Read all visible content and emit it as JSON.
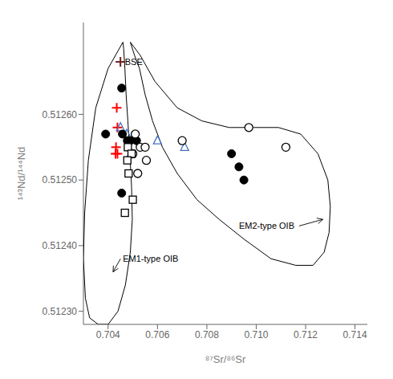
{
  "chart_data": {
    "type": "scatter",
    "xlabel": "⁸⁷Sr/⁸⁶Sr",
    "ylabel": "¹⁴³Nd/¹⁴⁴Nd",
    "xlim": [
      0.703,
      0.7145
    ],
    "ylim": [
      0.51228,
      0.51274
    ],
    "xticks": [
      0.704,
      0.706,
      0.708,
      {
        "value": 0.71,
        "label": "0.710"
      },
      0.712,
      0.714
    ],
    "yticks": [
      {
        "value": 0.5123,
        "label": "0.51230"
      },
      {
        "value": 0.5124,
        "label": "0.51240"
      },
      {
        "value": 0.5125,
        "label": "0.51250"
      },
      {
        "value": 0.5126,
        "label": "0.51260"
      }
    ],
    "grid": false,
    "series": [
      {
        "type": "line",
        "line_style": "solid",
        "color": "#000000",
        "values": [
          [
            0.7046,
            0.51271
          ],
          [
            0.704,
            0.51267
          ],
          [
            0.7035,
            0.51261
          ],
          [
            0.7032,
            0.51253
          ],
          [
            0.70305,
            0.51245
          ],
          [
            0.703,
            0.51238
          ],
          [
            0.70308,
            0.51232
          ],
          [
            0.70325,
            0.51229
          ],
          [
            0.7036,
            0.51228
          ],
          [
            0.704,
            0.51228
          ],
          [
            0.7044,
            0.5123
          ],
          [
            0.7047,
            0.51234
          ],
          [
            0.7049,
            0.51239
          ],
          [
            0.70498,
            0.51244
          ],
          [
            0.70495,
            0.51249
          ],
          [
            0.70488,
            0.51254
          ],
          [
            0.7048,
            0.51259
          ],
          [
            0.70473,
            0.51263
          ],
          [
            0.70468,
            0.51267
          ],
          [
            0.70463,
            0.5127
          ],
          [
            0.7046,
            0.51271
          ]
        ]
      },
      {
        "type": "line",
        "line_style": "solid",
        "color": "#000000",
        "values": [
          [
            0.7049,
            0.51271
          ],
          [
            0.7053,
            0.51269
          ],
          [
            0.7059,
            0.51265
          ],
          [
            0.7068,
            0.51261
          ],
          [
            0.7078,
            0.51259
          ],
          [
            0.7089,
            0.51258
          ],
          [
            0.7099,
            0.51258
          ],
          [
            0.7109,
            0.51258
          ],
          [
            0.7118,
            0.51257
          ],
          [
            0.7125,
            0.51254
          ],
          [
            0.7129,
            0.5125
          ],
          [
            0.713,
            0.51246
          ],
          [
            0.71295,
            0.51242
          ],
          [
            0.71275,
            0.51239
          ],
          [
            0.7123,
            0.51237
          ],
          [
            0.7116,
            0.51237
          ],
          [
            0.7106,
            0.51238
          ],
          [
            0.7095,
            0.51241
          ],
          [
            0.7085,
            0.51244
          ],
          [
            0.7076,
            0.51247
          ],
          [
            0.7068,
            0.51251
          ],
          [
            0.7062,
            0.51255
          ],
          [
            0.7058,
            0.51259
          ],
          [
            0.7055,
            0.51263
          ],
          [
            0.70527,
            0.51267
          ],
          [
            0.70507,
            0.51269
          ],
          [
            0.7049,
            0.51271
          ]
        ]
      },
      {
        "type": "scatter",
        "marker": "plus",
        "color": "#6B2020",
        "values": [
          [
            0.7045,
            0.51268
          ]
        ]
      },
      {
        "type": "scatter",
        "marker": "plus",
        "color": "red",
        "values": [
          [
            0.70435,
            0.51261
          ],
          [
            0.70438,
            0.51258
          ],
          [
            0.70432,
            0.51255
          ],
          [
            0.7043,
            0.51254
          ]
        ]
      },
      {
        "type": "scatter",
        "marker": "plus",
        "color": "red",
        "values": [
          [
            0.70438,
            0.51254
          ]
        ]
      },
      {
        "type": "scatter",
        "marker": "triangle_open",
        "color": "#4472C4",
        "values": [
          [
            0.7045,
            0.51258
          ],
          [
            0.70475,
            0.51257
          ],
          [
            0.706,
            0.51256
          ],
          [
            0.7071,
            0.51255
          ]
        ]
      },
      {
        "type": "scatter",
        "marker": "triangle_open",
        "color": "#4472C4",
        "values": [
          [
            0.70493,
            0.51254
          ]
        ]
      },
      {
        "type": "scatter",
        "marker": "circle",
        "color": "black",
        "values": [
          [
            0.70455,
            0.51264
          ],
          [
            0.70455,
            0.51248
          ],
          [
            0.709,
            0.51254
          ],
          [
            0.7093,
            0.51252
          ],
          [
            0.7095,
            0.5125
          ],
          [
            0.7039,
            0.51257
          ]
        ]
      },
      {
        "type": "scatter",
        "marker": "circle",
        "color": "black",
        "values": [
          [
            0.70458,
            0.51257
          ],
          [
            0.7049,
            0.51256
          ],
          [
            0.70478,
            0.51256
          ],
          [
            0.70515,
            0.51256
          ]
        ]
      },
      {
        "type": "scatter",
        "marker": "circle_open",
        "color": "black",
        "values": [
          [
            0.7051,
            0.51257
          ],
          [
            0.7053,
            0.51255
          ],
          [
            0.70555,
            0.51253
          ],
          [
            0.7052,
            0.51251
          ],
          [
            0.707,
            0.51256
          ],
          [
            0.7097,
            0.51258
          ],
          [
            0.7112,
            0.51255
          ]
        ]
      },
      {
        "type": "scatter",
        "marker": "circle_open",
        "color": "black",
        "values": [
          [
            0.7055,
            0.51255
          ],
          [
            0.705,
            0.51254
          ]
        ]
      },
      {
        "type": "scatter",
        "marker": "square_open",
        "color": "black",
        "values": [
          [
            0.7048,
            0.51255
          ],
          [
            0.70495,
            0.51254
          ],
          [
            0.70478,
            0.51253
          ],
          [
            0.70483,
            0.51251
          ]
        ]
      },
      {
        "type": "scatter",
        "marker": "square_open",
        "color": "black",
        "values": [
          [
            0.705,
            0.51247
          ],
          [
            0.70468,
            0.51245
          ]
        ]
      }
    ],
    "annotations": [
      {
        "text": "BSE",
        "x": 0.70468,
        "y": 0.51268
      },
      {
        "text": "EM1-type OIB",
        "x": 0.7046,
        "y": 0.51238,
        "arrow_x": 0.7042,
        "arrow_y": 0.51236
      },
      {
        "text": "EM2-type OIB",
        "x": 0.7093,
        "y": 0.51243,
        "arrow_x": 0.7127,
        "arrow_y": 0.51244
      }
    ]
  }
}
